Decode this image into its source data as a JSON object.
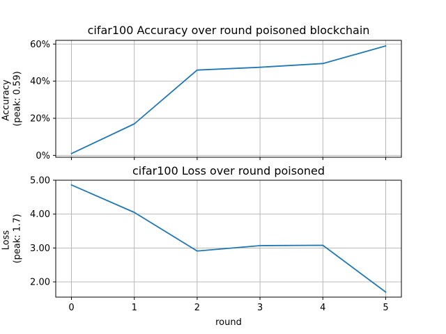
{
  "chart_data": [
    {
      "type": "line",
      "title": "cifar100 Accuracy over round poisoned blockchain",
      "ylabel_lines": [
        "Accuracy",
        "(peak: 0.59)"
      ],
      "xlabel": "",
      "x": [
        0,
        1,
        2,
        3,
        4,
        5
      ],
      "series": [
        {
          "values": [
            0.01,
            0.17,
            0.46,
            0.475,
            0.495,
            0.59
          ],
          "color": "#1f77b4"
        }
      ],
      "ylim": [
        -0.01,
        0.62
      ],
      "xlim": [
        -0.25,
        5.25
      ],
      "yticks": [
        0,
        0.2,
        0.4,
        0.6
      ],
      "ytick_labels": [
        "0%",
        "20%",
        "40%",
        "60%"
      ],
      "xticks": [
        0,
        1,
        2,
        3,
        4,
        5
      ],
      "xtick_labels": [],
      "grid": true
    },
    {
      "type": "line",
      "title": "cifar100 Loss over round poisoned",
      "ylabel_lines": [
        "Loss",
        "(peak: 1.7)"
      ],
      "xlabel": "round",
      "x": [
        0,
        1,
        2,
        3,
        4,
        5
      ],
      "series": [
        {
          "values": [
            4.86,
            4.05,
            2.91,
            3.07,
            3.08,
            1.7
          ],
          "color": "#1f77b4"
        }
      ],
      "ylim": [
        1.55,
        5.0
      ],
      "xlim": [
        -0.25,
        5.25
      ],
      "yticks": [
        2,
        3,
        4,
        5
      ],
      "ytick_labels": [
        "2.00",
        "3.00",
        "4.00",
        "5.00"
      ],
      "xticks": [
        0,
        1,
        2,
        3,
        4,
        5
      ],
      "xtick_labels": [
        "0",
        "1",
        "2",
        "3",
        "4",
        "5"
      ],
      "grid": true
    }
  ]
}
